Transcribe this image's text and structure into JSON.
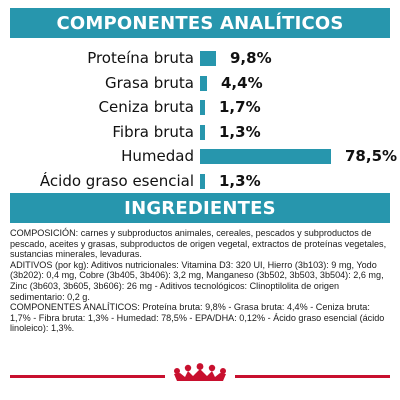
{
  "banners": {
    "analytics_title": "COMPONENTES ANALÍTICOS",
    "ingredients_title": "INGREDIENTES"
  },
  "analysis": [
    {
      "label": "Proteína bruta",
      "value_text": "9,8%",
      "value": 9.8
    },
    {
      "label": "Grasa bruta",
      "value_text": "4,4%",
      "value": 4.4
    },
    {
      "label": "Ceniza bruta",
      "value_text": "1,7%",
      "value": 1.7
    },
    {
      "label": "Fibra bruta",
      "value_text": "1,3%",
      "value": 1.3
    },
    {
      "label": "Humedad",
      "value_text": "78,5%",
      "value": 78.5
    },
    {
      "label": "Ácido graso esencial",
      "value_text": "1,3%",
      "value": 1.3
    }
  ],
  "ingredients": {
    "composition": "COMPOSICIÓN: carnes y subproductos animales, cereales, pescados y subproductos de pescado, aceites y grasas, subproductos de origen vegetal, extractos de proteínas vegetales, sustancias minerales, levaduras.",
    "additives": "ADITIVOS (por kg): Aditivos nutricionales: Vitamina D3: 320 UI, Hierro (3b103): 9 mg, Yodo (3b202): 0,4 mg, Cobre (3b405, 3b406): 3,2 mg, Manganeso (3b502, 3b503, 3b504): 2,6 mg, Zinc (3b603, 3b605, 3b606): 26 mg - Aditivos tecnológicos: Clinoptilolita de origen sedimentario: 0,2 g.",
    "analytical": "COMPONENTES ANALÍTICOS: Proteína bruta: 9,8% - Grasa bruta: 4,4% - Ceniza bruta: 1,7% - Fibra bruta: 1,3% - Humedad: 78,5% - EPA/DHA: 0,12% - Ácido graso esencial (ácido linoleico): 1,3%."
  },
  "colors": {
    "accent": "#2796ad",
    "brand_red": "#c8102e"
  },
  "logo": {
    "icon": "royal-canin-crown-icon"
  }
}
